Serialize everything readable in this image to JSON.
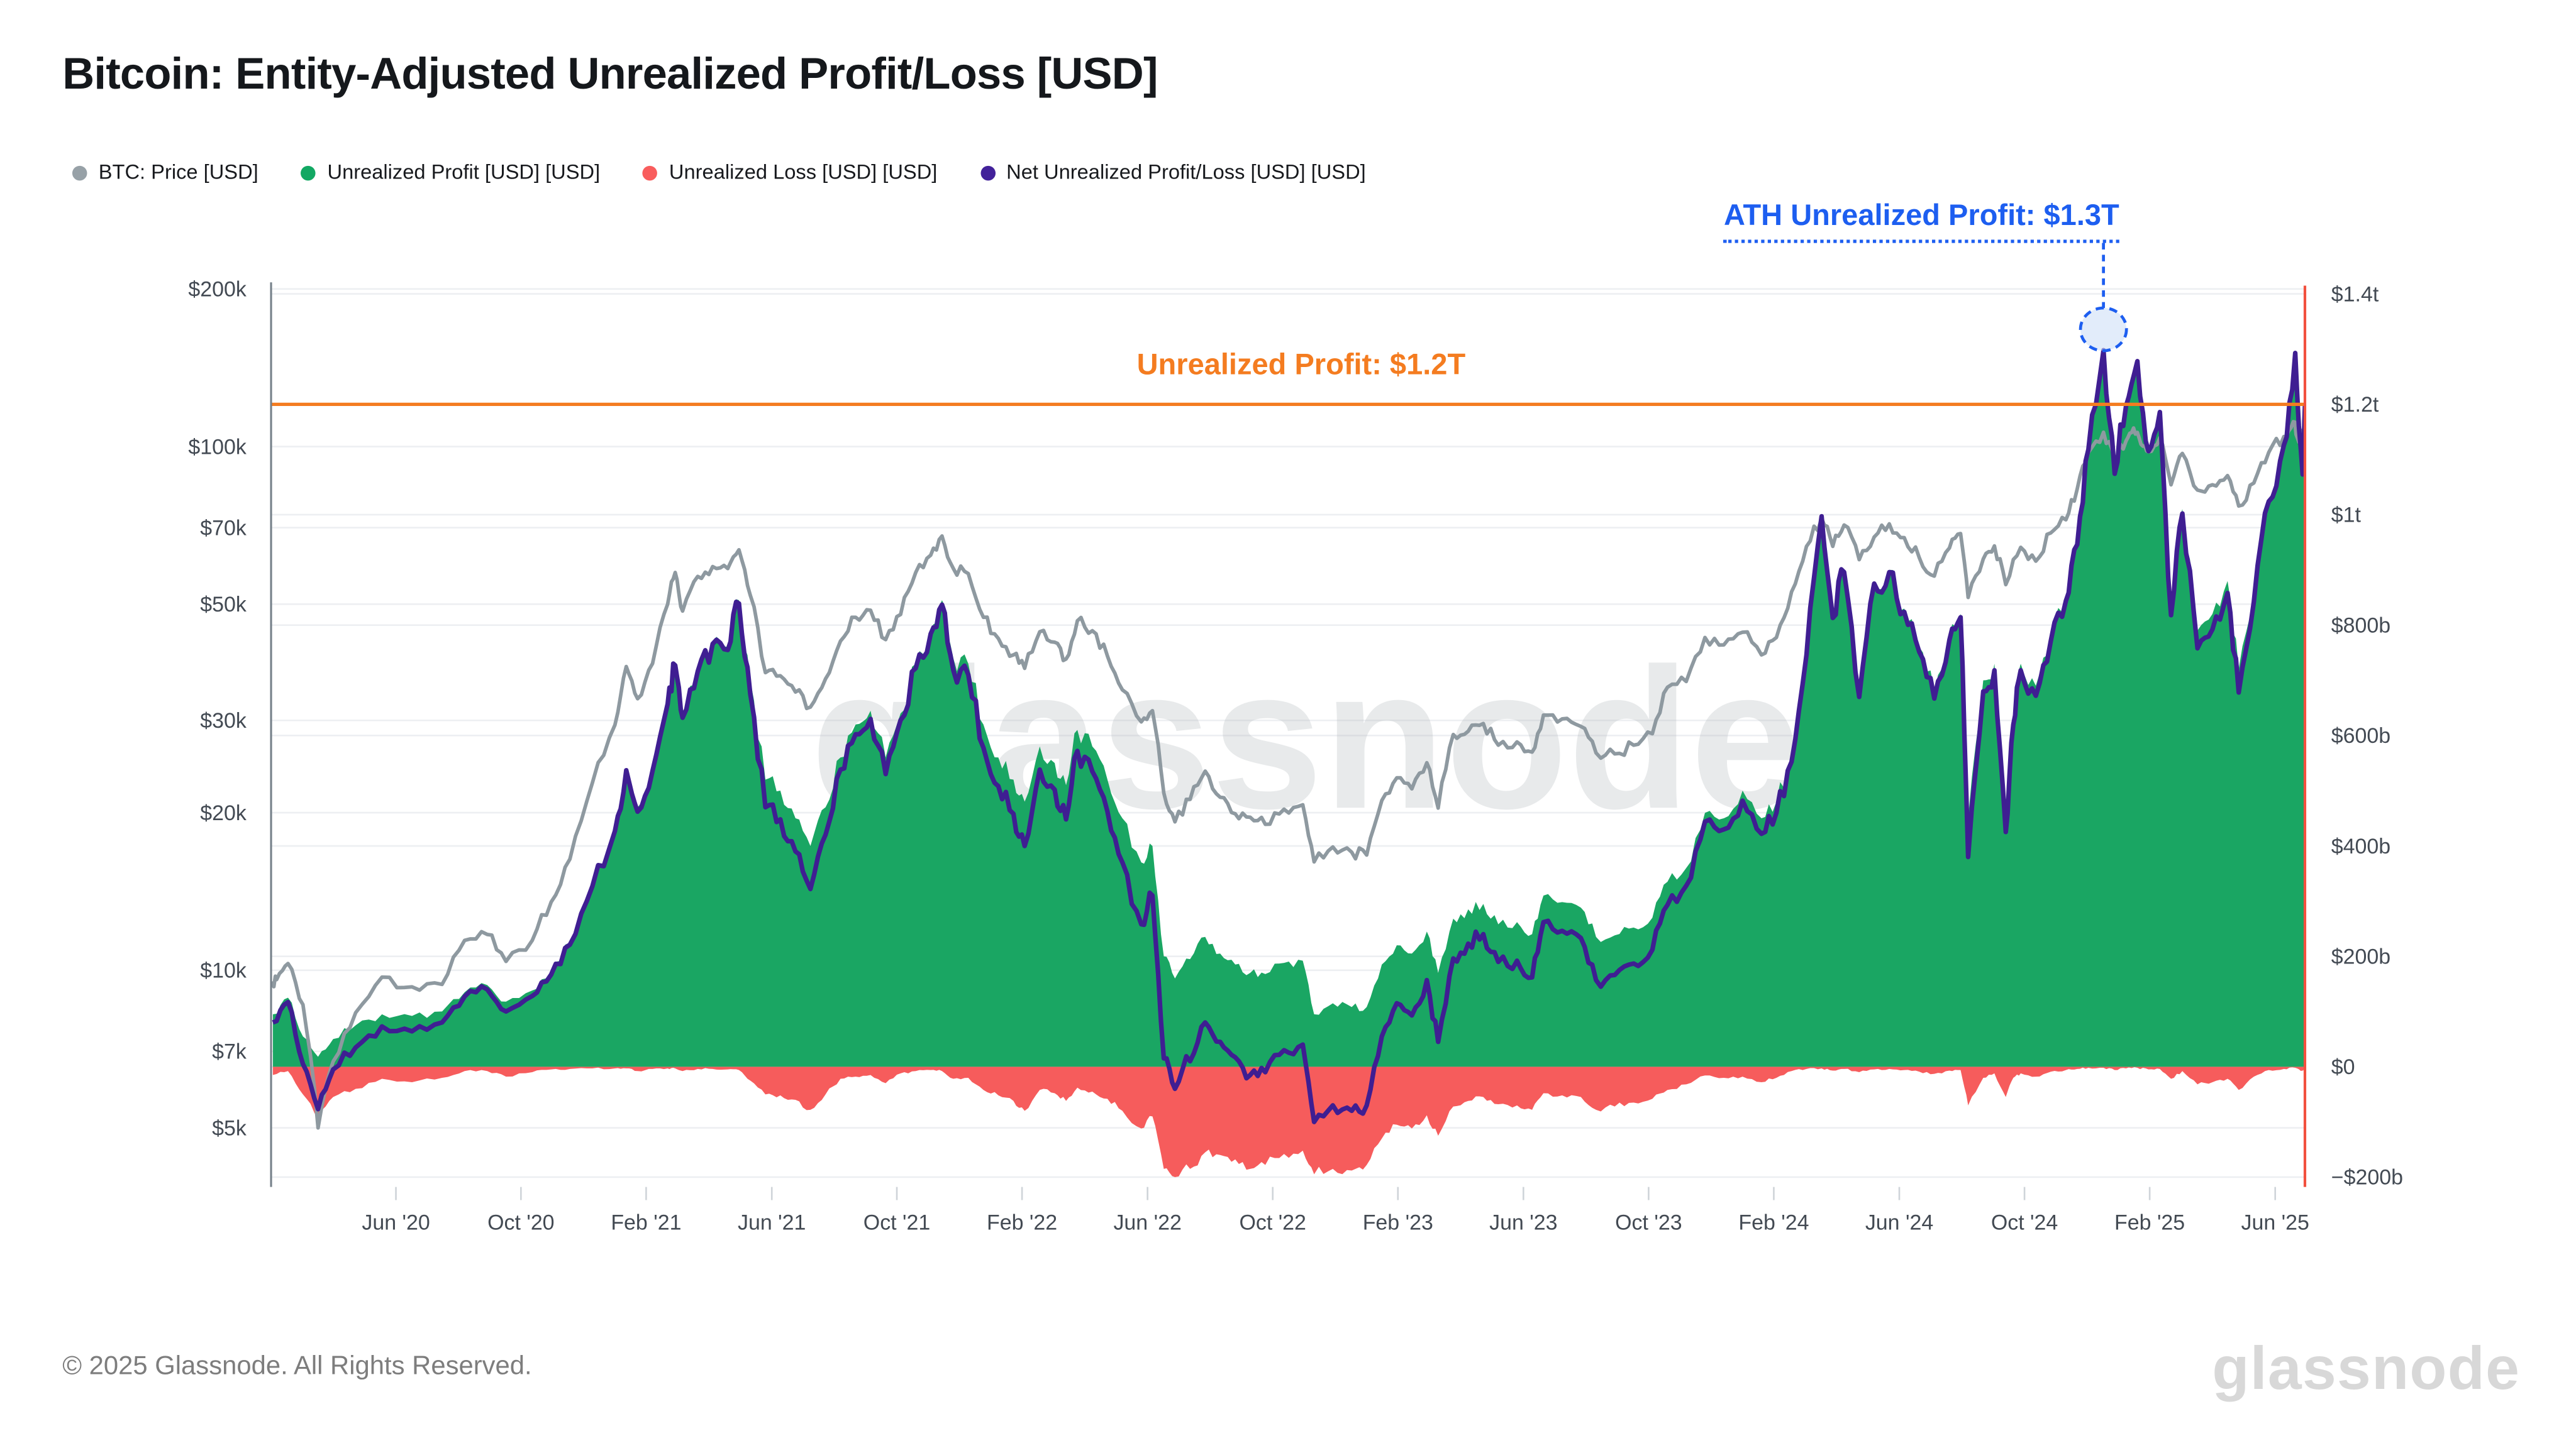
{
  "header": {
    "title": "Bitcoin: Entity-Adjusted Unrealized Profit/Loss [USD]"
  },
  "legend": {
    "items": [
      {
        "id": "btc-price",
        "label": "BTC: Price [USD]",
        "color": "#97a1a7"
      },
      {
        "id": "unrealized-profit",
        "label": "Unrealized Profit [USD] [USD]",
        "color": "#12a863"
      },
      {
        "id": "unrealized-loss",
        "label": "Unrealized Loss [USD] [USD]",
        "color": "#f95d5d"
      },
      {
        "id": "net-unrealized",
        "label": "Net Unrealized Profit/Loss [USD] [USD]",
        "color": "#42219a"
      }
    ]
  },
  "annotations": {
    "ath": {
      "label": "ATH Unrealized Profit: $1.3T",
      "color": "#1d5ef0",
      "t": 2024.96,
      "value_billion": 1300
    },
    "profit_line": {
      "label": "Unrealized Profit: $1.2T",
      "color": "#f47c20",
      "value_billion": 1200
    }
  },
  "watermark": {
    "center": "glassnode"
  },
  "footer": {
    "copyright": "© 2025 Glassnode. All Rights Reserved.",
    "logo": "glassnode"
  },
  "chart_data": {
    "type": "line+area",
    "title": "Bitcoin: Entity-Adjusted Unrealized Profit/Loss [USD]",
    "x_range": [
      2020.085,
      2025.496
    ],
    "grid": "horizontal-only",
    "x_ticks": [
      {
        "t": 2020.417,
        "label": "Jun '20"
      },
      {
        "t": 2020.75,
        "label": "Oct '20"
      },
      {
        "t": 2021.083,
        "label": "Feb '21"
      },
      {
        "t": 2021.417,
        "label": "Jun '21"
      },
      {
        "t": 2021.75,
        "label": "Oct '21"
      },
      {
        "t": 2022.083,
        "label": "Feb '22"
      },
      {
        "t": 2022.417,
        "label": "Jun '22"
      },
      {
        "t": 2022.75,
        "label": "Oct '22"
      },
      {
        "t": 2023.083,
        "label": "Feb '23"
      },
      {
        "t": 2023.417,
        "label": "Jun '23"
      },
      {
        "t": 2023.75,
        "label": "Oct '23"
      },
      {
        "t": 2024.083,
        "label": "Feb '24"
      },
      {
        "t": 2024.417,
        "label": "Jun '24"
      },
      {
        "t": 2024.75,
        "label": "Oct '24"
      },
      {
        "t": 2025.083,
        "label": "Feb '25"
      },
      {
        "t": 2025.417,
        "label": "Jun '25"
      }
    ],
    "left_axis": {
      "scale": "log",
      "unit": "USD",
      "ticks": [
        {
          "v": 200000,
          "label": "$200k"
        },
        {
          "v": 100000,
          "label": "$100k"
        },
        {
          "v": 70000,
          "label": "$70k"
        },
        {
          "v": 50000,
          "label": "$50k"
        },
        {
          "v": 30000,
          "label": "$30k"
        },
        {
          "v": 20000,
          "label": "$20k"
        },
        {
          "v": 10000,
          "label": "$10k"
        },
        {
          "v": 7000,
          "label": "$7k"
        },
        {
          "v": 5000,
          "label": "$5k"
        }
      ]
    },
    "right_axis": {
      "scale": "linear",
      "unit": "billion USD",
      "range": [
        -200,
        1400
      ],
      "ticks": [
        {
          "v": 1400,
          "label": "$1.4t"
        },
        {
          "v": 1200,
          "label": "$1.2t"
        },
        {
          "v": 1000,
          "label": "$1t"
        },
        {
          "v": 800,
          "label": "$800b"
        },
        {
          "v": 600,
          "label": "$600b"
        },
        {
          "v": 400,
          "label": "$400b"
        },
        {
          "v": 200,
          "label": "$200b"
        },
        {
          "v": 0,
          "label": "$0"
        },
        {
          "v": -200,
          "label": "−$200b"
        }
      ]
    },
    "series": [
      {
        "name": "BTC: Price [USD]",
        "axis": "left",
        "type": "line",
        "color": "#8e99a0"
      },
      {
        "name": "Unrealized Profit [USD]",
        "axis": "right",
        "type": "area",
        "color": "#1aa663",
        "source": "pl_points[1]"
      },
      {
        "name": "Unrealized Loss [USD]",
        "axis": "right",
        "type": "area",
        "color": "#f65c5c",
        "source": "pl_points[2]"
      },
      {
        "name": "Net Unrealized Profit/Loss [USD]",
        "axis": "right",
        "type": "line",
        "color": "#3f1e92",
        "source": "pl_points[1]+pl_points[2]"
      }
    ],
    "pl_points": [
      [
        2020.09,
        95,
        -15
      ],
      [
        2020.13,
        125,
        -8
      ],
      [
        2020.17,
        55,
        -50
      ],
      [
        2020.21,
        18,
        -95
      ],
      [
        2020.25,
        50,
        -55
      ],
      [
        2020.31,
        75,
        -40
      ],
      [
        2020.38,
        95,
        -22
      ],
      [
        2020.46,
        92,
        -28
      ],
      [
        2020.54,
        100,
        -20
      ],
      [
        2020.6,
        135,
        -8
      ],
      [
        2020.66,
        148,
        -8
      ],
      [
        2020.71,
        118,
        -18
      ],
      [
        2020.78,
        138,
        -10
      ],
      [
        2020.83,
        172,
        -5
      ],
      [
        2020.88,
        225,
        -4
      ],
      [
        2020.94,
        330,
        -3
      ],
      [
        2021.0,
        430,
        -3
      ],
      [
        2021.03,
        540,
        -3
      ],
      [
        2021.06,
        470,
        -8
      ],
      [
        2021.1,
        540,
        -4
      ],
      [
        2021.14,
        660,
        -3
      ],
      [
        2021.16,
        730,
        -3
      ],
      [
        2021.18,
        640,
        -8
      ],
      [
        2021.22,
        720,
        -4
      ],
      [
        2021.26,
        770,
        -4
      ],
      [
        2021.3,
        760,
        -5
      ],
      [
        2021.33,
        845,
        -6
      ],
      [
        2021.36,
        700,
        -25
      ],
      [
        2021.4,
        520,
        -50
      ],
      [
        2021.44,
        500,
        -52
      ],
      [
        2021.48,
        450,
        -60
      ],
      [
        2021.52,
        400,
        -78
      ],
      [
        2021.56,
        470,
        -50
      ],
      [
        2021.6,
        560,
        -22
      ],
      [
        2021.64,
        620,
        -18
      ],
      [
        2021.68,
        645,
        -15
      ],
      [
        2021.72,
        560,
        -30
      ],
      [
        2021.76,
        640,
        -12
      ],
      [
        2021.8,
        730,
        -8
      ],
      [
        2021.84,
        790,
        -6
      ],
      [
        2021.87,
        845,
        -8
      ],
      [
        2021.9,
        740,
        -22
      ],
      [
        2021.94,
        730,
        -20
      ],
      [
        2021.98,
        620,
        -42
      ],
      [
        2022.02,
        560,
        -52
      ],
      [
        2022.06,
        520,
        -62
      ],
      [
        2022.09,
        480,
        -80
      ],
      [
        2022.13,
        580,
        -42
      ],
      [
        2022.17,
        550,
        -48
      ],
      [
        2022.2,
        510,
        -62
      ],
      [
        2022.23,
        610,
        -38
      ],
      [
        2022.27,
        580,
        -45
      ],
      [
        2022.31,
        520,
        -58
      ],
      [
        2022.35,
        450,
        -80
      ],
      [
        2022.4,
        370,
        -112
      ],
      [
        2022.43,
        400,
        -90
      ],
      [
        2022.46,
        200,
        -185
      ],
      [
        2022.49,
        160,
        -200
      ],
      [
        2022.53,
        195,
        -185
      ],
      [
        2022.57,
        235,
        -155
      ],
      [
        2022.61,
        205,
        -160
      ],
      [
        2022.65,
        185,
        -168
      ],
      [
        2022.69,
        170,
        -185
      ],
      [
        2022.73,
        168,
        -178
      ],
      [
        2022.78,
        188,
        -158
      ],
      [
        2022.83,
        192,
        -152
      ],
      [
        2022.86,
        95,
        -195
      ],
      [
        2022.91,
        115,
        -185
      ],
      [
        2022.96,
        108,
        -188
      ],
      [
        2023.0,
        108,
        -178
      ],
      [
        2023.04,
        185,
        -130
      ],
      [
        2023.08,
        220,
        -105
      ],
      [
        2023.12,
        205,
        -112
      ],
      [
        2023.16,
        245,
        -88
      ],
      [
        2023.19,
        170,
        -125
      ],
      [
        2023.23,
        268,
        -72
      ],
      [
        2023.27,
        285,
        -62
      ],
      [
        2023.31,
        295,
        -55
      ],
      [
        2023.35,
        258,
        -68
      ],
      [
        2023.4,
        262,
        -70
      ],
      [
        2023.44,
        240,
        -78
      ],
      [
        2023.47,
        310,
        -48
      ],
      [
        2023.52,
        298,
        -52
      ],
      [
        2023.57,
        288,
        -55
      ],
      [
        2023.61,
        235,
        -78
      ],
      [
        2023.66,
        238,
        -72
      ],
      [
        2023.71,
        252,
        -65
      ],
      [
        2023.76,
        270,
        -58
      ],
      [
        2023.8,
        335,
        -42
      ],
      [
        2023.85,
        360,
        -32
      ],
      [
        2023.9,
        460,
        -16
      ],
      [
        2023.95,
        450,
        -20
      ],
      [
        2024.0,
        500,
        -18
      ],
      [
        2024.05,
        450,
        -28
      ],
      [
        2024.09,
        480,
        -20
      ],
      [
        2024.13,
        560,
        -8
      ],
      [
        2024.17,
        750,
        -4
      ],
      [
        2024.21,
        1000,
        -3
      ],
      [
        2024.24,
        820,
        -7
      ],
      [
        2024.27,
        900,
        -4
      ],
      [
        2024.31,
        680,
        -10
      ],
      [
        2024.35,
        880,
        -5
      ],
      [
        2024.39,
        900,
        -4
      ],
      [
        2024.43,
        830,
        -6
      ],
      [
        2024.47,
        760,
        -9
      ],
      [
        2024.51,
        680,
        -13
      ],
      [
        2024.55,
        780,
        -7
      ],
      [
        2024.58,
        820,
        -6
      ],
      [
        2024.6,
        450,
        -70
      ],
      [
        2024.64,
        700,
        -20
      ],
      [
        2024.67,
        730,
        -12
      ],
      [
        2024.7,
        480,
        -55
      ],
      [
        2024.72,
        640,
        -20
      ],
      [
        2024.74,
        730,
        -12
      ],
      [
        2024.78,
        690,
        -18
      ],
      [
        2024.82,
        780,
        -9
      ],
      [
        2024.86,
        850,
        -6
      ],
      [
        2024.89,
        950,
        -4
      ],
      [
        2024.92,
        1120,
        -2
      ],
      [
        2024.96,
        1300,
        -2
      ],
      [
        2024.99,
        1080,
        -6
      ],
      [
        2025.02,
        1200,
        -3
      ],
      [
        2025.05,
        1280,
        -2
      ],
      [
        2025.08,
        1120,
        -5
      ],
      [
        2025.11,
        1190,
        -4
      ],
      [
        2025.14,
        840,
        -22
      ],
      [
        2025.17,
        1010,
        -8
      ],
      [
        2025.21,
        790,
        -32
      ],
      [
        2025.25,
        820,
        -28
      ],
      [
        2025.29,
        880,
        -22
      ],
      [
        2025.32,
        720,
        -42
      ],
      [
        2025.36,
        860,
        -18
      ],
      [
        2025.4,
        1030,
        -6
      ],
      [
        2025.44,
        1130,
        -4
      ],
      [
        2025.47,
        1295,
        -2
      ],
      [
        2025.49,
        1080,
        -7
      ],
      [
        2025.496,
        1200,
        -3
      ]
    ],
    "price_points": [
      [
        2020.085,
        9300
      ],
      [
        2020.1,
        9600
      ],
      [
        2020.13,
        10300
      ],
      [
        2020.17,
        8600
      ],
      [
        2020.21,
        5000
      ],
      [
        2020.25,
        6700
      ],
      [
        2020.31,
        8300
      ],
      [
        2020.38,
        9700
      ],
      [
        2020.46,
        9300
      ],
      [
        2020.54,
        9400
      ],
      [
        2020.6,
        11400
      ],
      [
        2020.66,
        11700
      ],
      [
        2020.71,
        10400
      ],
      [
        2020.78,
        11400
      ],
      [
        2020.83,
        13500
      ],
      [
        2020.88,
        16300
      ],
      [
        2020.94,
        22800
      ],
      [
        2021.0,
        29400
      ],
      [
        2021.03,
        38000
      ],
      [
        2021.06,
        33000
      ],
      [
        2021.1,
        38500
      ],
      [
        2021.14,
        50000
      ],
      [
        2021.16,
        57500
      ],
      [
        2021.18,
        48500
      ],
      [
        2021.22,
        56500
      ],
      [
        2021.26,
        59000
      ],
      [
        2021.3,
        58500
      ],
      [
        2021.33,
        63500
      ],
      [
        2021.36,
        52000
      ],
      [
        2021.4,
        37000
      ],
      [
        2021.44,
        36500
      ],
      [
        2021.48,
        34000
      ],
      [
        2021.52,
        31800
      ],
      [
        2021.56,
        36000
      ],
      [
        2021.6,
        42500
      ],
      [
        2021.64,
        47200
      ],
      [
        2021.68,
        48700
      ],
      [
        2021.72,
        42800
      ],
      [
        2021.76,
        47800
      ],
      [
        2021.8,
        57500
      ],
      [
        2021.84,
        62000
      ],
      [
        2021.87,
        67500
      ],
      [
        2021.9,
        58500
      ],
      [
        2021.94,
        57200
      ],
      [
        2021.98,
        47200
      ],
      [
        2022.02,
        43000
      ],
      [
        2022.06,
        40000
      ],
      [
        2022.09,
        37700
      ],
      [
        2022.13,
        44300
      ],
      [
        2022.17,
        42300
      ],
      [
        2022.2,
        39300
      ],
      [
        2022.23,
        46500
      ],
      [
        2022.27,
        44500
      ],
      [
        2022.31,
        39800
      ],
      [
        2022.35,
        34300
      ],
      [
        2022.4,
        29800
      ],
      [
        2022.43,
        31300
      ],
      [
        2022.46,
        21800
      ],
      [
        2022.49,
        19200
      ],
      [
        2022.53,
        21200
      ],
      [
        2022.57,
        24000
      ],
      [
        2022.61,
        21400
      ],
      [
        2022.65,
        19900
      ],
      [
        2022.69,
        19600
      ],
      [
        2022.73,
        19000
      ],
      [
        2022.78,
        20300
      ],
      [
        2022.83,
        20700
      ],
      [
        2022.86,
        16100
      ],
      [
        2022.91,
        17200
      ],
      [
        2022.96,
        16800
      ],
      [
        2023.0,
        16600
      ],
      [
        2023.04,
        21100
      ],
      [
        2023.08,
        23300
      ],
      [
        2023.12,
        22200
      ],
      [
        2023.16,
        24900
      ],
      [
        2023.19,
        20400
      ],
      [
        2023.23,
        28200
      ],
      [
        2023.27,
        28600
      ],
      [
        2023.31,
        29600
      ],
      [
        2023.35,
        26900
      ],
      [
        2023.4,
        27300
      ],
      [
        2023.44,
        26100
      ],
      [
        2023.47,
        30700
      ],
      [
        2023.52,
        30200
      ],
      [
        2023.57,
        29200
      ],
      [
        2023.61,
        26000
      ],
      [
        2023.66,
        25900
      ],
      [
        2023.71,
        26900
      ],
      [
        2023.76,
        28300
      ],
      [
        2023.8,
        34700
      ],
      [
        2023.85,
        35600
      ],
      [
        2023.9,
        43200
      ],
      [
        2023.95,
        41800
      ],
      [
        2024.0,
        44200
      ],
      [
        2024.05,
        40000
      ],
      [
        2024.09,
        43200
      ],
      [
        2024.13,
        52800
      ],
      [
        2024.17,
        64500
      ],
      [
        2024.21,
        73000
      ],
      [
        2024.24,
        64500
      ],
      [
        2024.27,
        70800
      ],
      [
        2024.31,
        60800
      ],
      [
        2024.35,
        67200
      ],
      [
        2024.39,
        71200
      ],
      [
        2024.43,
        67000
      ],
      [
        2024.47,
        61300
      ],
      [
        2024.51,
        56600
      ],
      [
        2024.55,
        64000
      ],
      [
        2024.58,
        68200
      ],
      [
        2024.6,
        51500
      ],
      [
        2024.64,
        61000
      ],
      [
        2024.67,
        64600
      ],
      [
        2024.7,
        54500
      ],
      [
        2024.74,
        64200
      ],
      [
        2024.78,
        60400
      ],
      [
        2024.82,
        68400
      ],
      [
        2024.86,
        72500
      ],
      [
        2024.89,
        83000
      ],
      [
        2024.92,
        97500
      ],
      [
        2024.96,
        106500
      ],
      [
        2024.99,
        94500
      ],
      [
        2025.02,
        102500
      ],
      [
        2025.04,
        108500
      ],
      [
        2025.06,
        101000
      ],
      [
        2025.08,
        97700
      ],
      [
        2025.11,
        104000
      ],
      [
        2025.14,
        84500
      ],
      [
        2025.17,
        97000
      ],
      [
        2025.21,
        82600
      ],
      [
        2025.25,
        84500
      ],
      [
        2025.29,
        88000
      ],
      [
        2025.32,
        77000
      ],
      [
        2025.36,
        85200
      ],
      [
        2025.4,
        97500
      ],
      [
        2025.44,
        104500
      ],
      [
        2025.465,
        111500
      ],
      [
        2025.48,
        102000
      ],
      [
        2025.496,
        108000
      ]
    ]
  }
}
